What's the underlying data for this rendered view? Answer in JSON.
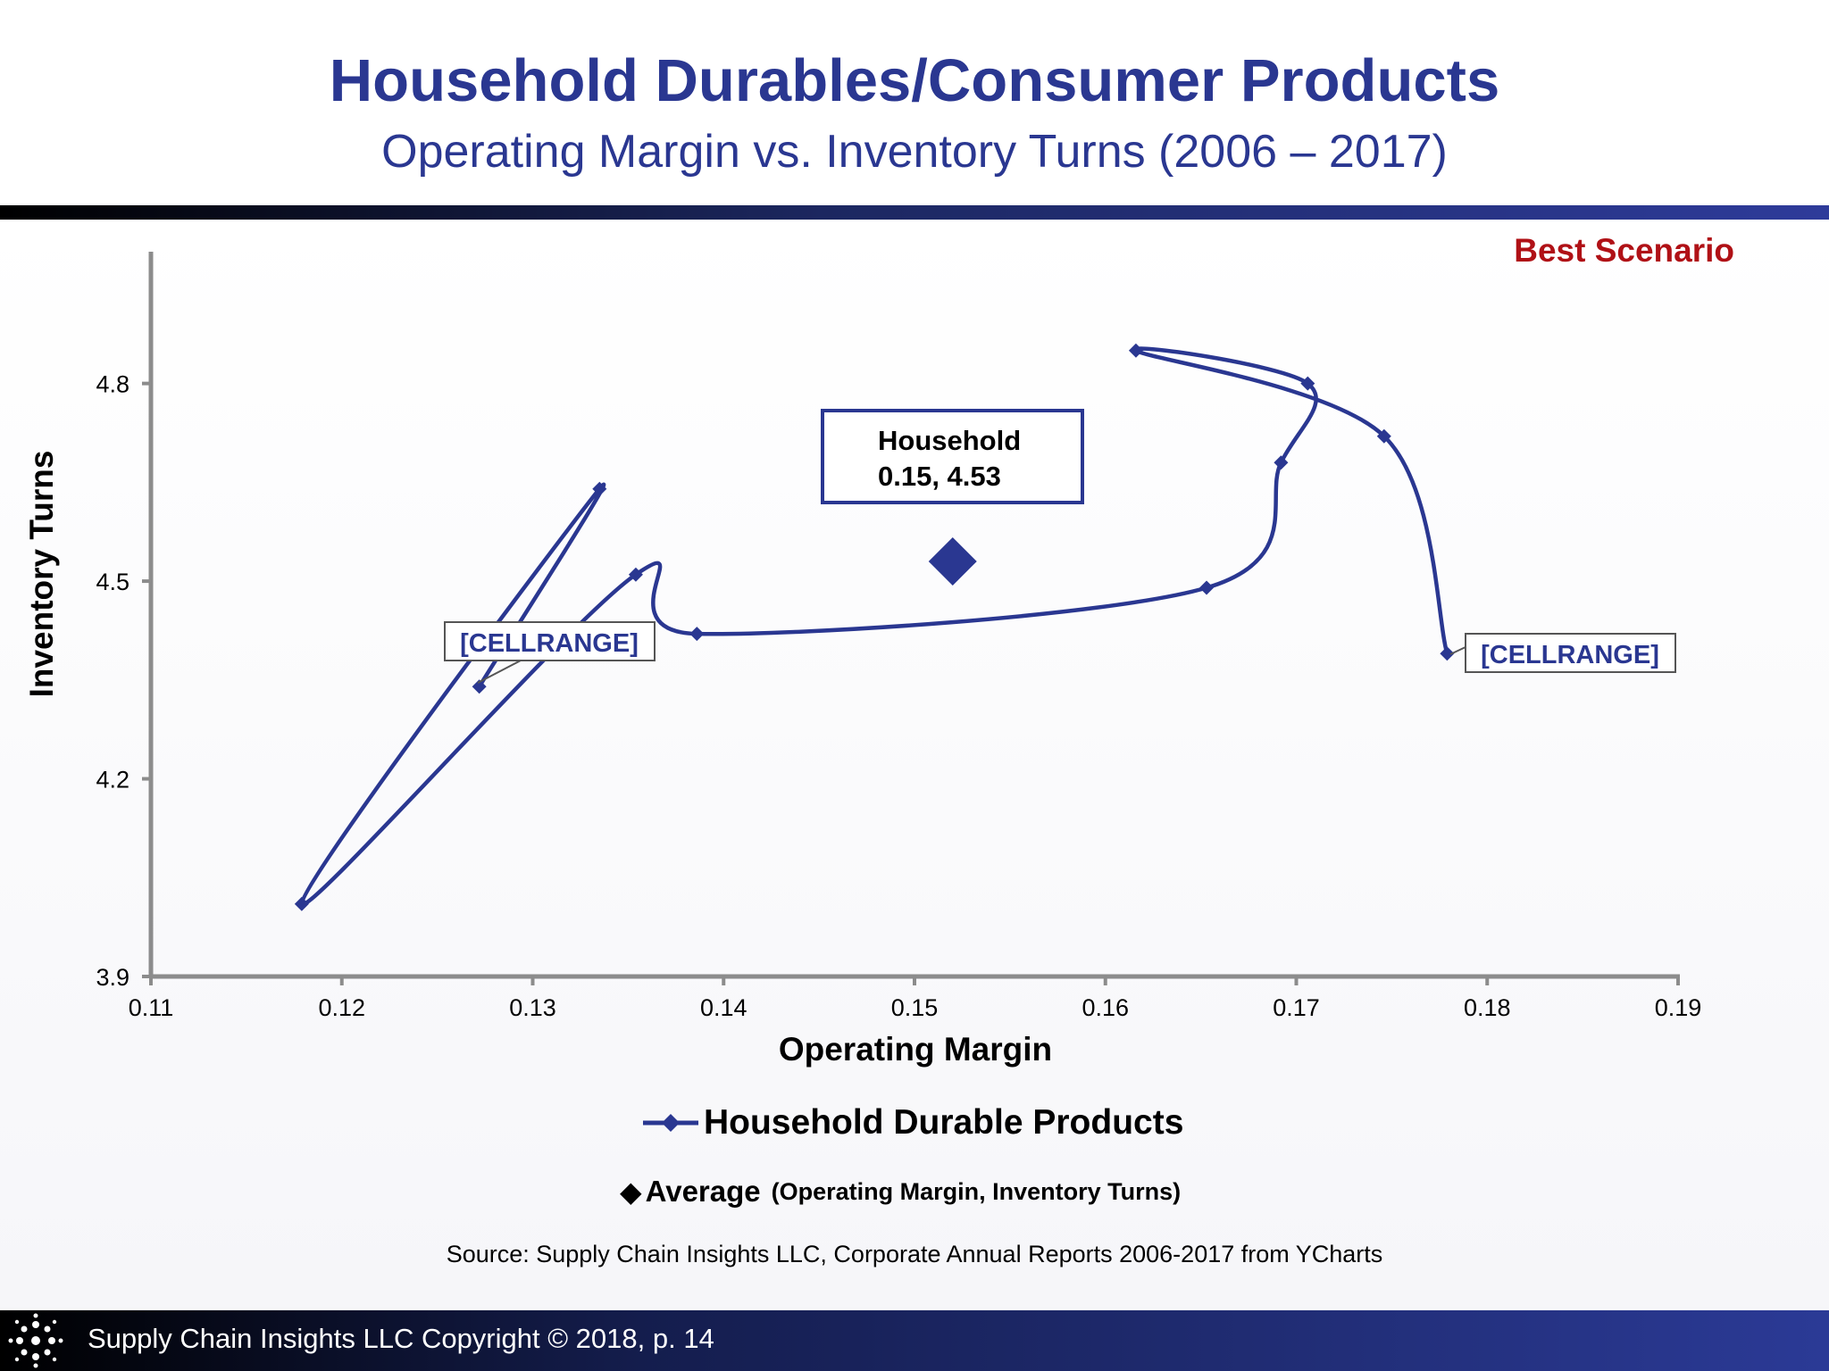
{
  "header": {
    "title": "Household Durables/Consumer Products",
    "subtitle": "Operating Margin vs. Inventory Turns  (2006 – 2017)"
  },
  "scenario_label": "Best Scenario",
  "chart_data": {
    "type": "line",
    "xlabel": "Operating Margin",
    "ylabel": "Inventory Turns",
    "xlim": [
      0.11,
      0.19
    ],
    "ylim": [
      3.9,
      5.0
    ],
    "x_ticks": [
      "0.11",
      "0.12",
      "0.13",
      "0.14",
      "0.15",
      "0.16",
      "0.17",
      "0.18",
      "0.19"
    ],
    "y_ticks": [
      "3.9",
      "4.2",
      "4.5",
      "4.8"
    ],
    "grid": false,
    "series": [
      {
        "name": "Household Durable Products",
        "color": "#2a3791",
        "marker": "diamond",
        "smoothed": true,
        "points": [
          {
            "x": 0.1272,
            "y": 4.34
          },
          {
            "x": 0.1335,
            "y": 4.64
          },
          {
            "x": 0.1179,
            "y": 4.01
          },
          {
            "x": 0.1354,
            "y": 4.51
          },
          {
            "x": 0.1386,
            "y": 4.42
          },
          {
            "x": 0.1653,
            "y": 4.49
          },
          {
            "x": 0.1692,
            "y": 4.68
          },
          {
            "x": 0.1706,
            "y": 4.8
          },
          {
            "x": 0.1616,
            "y": 4.85
          },
          {
            "x": 0.1746,
            "y": 4.72
          },
          {
            "x": 0.1779,
            "y": 4.39
          }
        ],
        "point_labels": [
          {
            "point_index": 0,
            "text": "[CELLRANGE]"
          },
          {
            "point_index": 10,
            "text": "[CELLRANGE]"
          }
        ]
      }
    ],
    "average": {
      "name": "Average",
      "x": 0.152,
      "y": 4.53,
      "color": "#2a3791"
    },
    "callout": {
      "line1": "Household",
      "line2": "0.15, 4.53"
    }
  },
  "legend": {
    "series_label": "Household Durable Products",
    "average_label": "Average",
    "average_note": "(Operating Margin, Inventory Turns)",
    "average_symbol": "◆"
  },
  "source": "Source:  Supply Chain Insights LLC, Corporate Annual Reports 2006-2017 from YCharts",
  "footer": {
    "text": "Supply Chain Insights LLC Copyright © 2018, p. 14"
  }
}
